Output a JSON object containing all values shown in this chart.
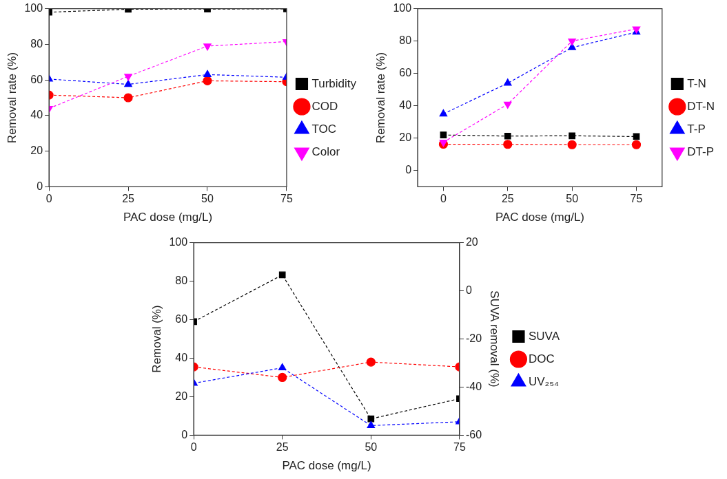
{
  "chart_data": [
    {
      "type": "line",
      "xlabel": "PAC dose (mg/L)",
      "ylabel": "Removal rate (%)",
      "x": [
        0,
        25,
        50,
        75
      ],
      "xlim": [
        0,
        75
      ],
      "xticks": [
        0,
        25,
        50,
        75
      ],
      "ylim": [
        0,
        100
      ],
      "yticks": [
        0,
        20,
        40,
        60,
        80,
        100
      ],
      "grid": false,
      "legend": "right",
      "line_style": "dashed",
      "series": [
        {
          "name": "Turbidity",
          "color": "#000000",
          "marker": "square",
          "values": [
            98,
            99.7,
            99.8,
            99.9
          ]
        },
        {
          "name": "COD",
          "color": "#ff0000",
          "marker": "circle",
          "values": [
            51.5,
            50,
            59.5,
            59
          ]
        },
        {
          "name": "TOC",
          "color": "#0000ff",
          "marker": "triangle",
          "values": [
            60.5,
            57.5,
            63,
            61.5
          ]
        },
        {
          "name": "Color",
          "color": "#ff00ff",
          "marker": "triangle_down",
          "values": [
            44,
            62,
            79,
            81.5
          ]
        }
      ]
    },
    {
      "type": "line",
      "xlabel": "PAC dose (mg/L)",
      "ylabel": "Removal rate (%)",
      "x": [
        0,
        25,
        50,
        75
      ],
      "xlim": [
        -10,
        85
      ],
      "xticks": [
        0,
        25,
        50,
        75
      ],
      "ylim": [
        -10,
        100
      ],
      "yticks": [
        0,
        20,
        40,
        60,
        80,
        100
      ],
      "grid": false,
      "legend": "right",
      "line_style": "dashed",
      "series": [
        {
          "name": "T-N",
          "color": "#000000",
          "marker": "square",
          "values": [
            22,
            21.3,
            21.5,
            21
          ]
        },
        {
          "name": "DT-N",
          "color": "#ff0000",
          "marker": "circle",
          "values": [
            16.3,
            16.2,
            16,
            16
          ]
        },
        {
          "name": "T-P",
          "color": "#0000ff",
          "marker": "triangle",
          "values": [
            35,
            54,
            76,
            85.5
          ]
        },
        {
          "name": "DT-P",
          "color": "#ff00ff",
          "marker": "triangle_down",
          "values": [
            17.5,
            41,
            80,
            87.5
          ]
        }
      ]
    },
    {
      "type": "line",
      "xlabel": "PAC dose (mg/L)",
      "ylabel": "Removal (%)",
      "y2label": "SUVA removal (%)",
      "x": [
        0,
        25,
        50,
        75
      ],
      "xlim": [
        0,
        75
      ],
      "xticks": [
        0,
        25,
        50,
        75
      ],
      "ylim": [
        0,
        100
      ],
      "yticks": [
        0,
        20,
        40,
        60,
        80,
        100
      ],
      "y2lim": [
        -60,
        20
      ],
      "y2ticks": [
        -60,
        -40,
        -20,
        0,
        20
      ],
      "grid": false,
      "legend": "right",
      "line_style": "dashed",
      "series": [
        {
          "name": "SUVA",
          "color": "#000000",
          "marker": "square",
          "axis": "y2",
          "values": [
            -12.8,
            6.6,
            -53.2,
            -44.8
          ]
        },
        {
          "name": "DOC",
          "color": "#ff0000",
          "marker": "circle",
          "values": [
            35.5,
            30,
            38,
            35.5
          ]
        },
        {
          "name": "UV₂₅₄",
          "color": "#0000ff",
          "marker": "triangle",
          "values": [
            27,
            35,
            5,
            7
          ]
        }
      ]
    }
  ]
}
